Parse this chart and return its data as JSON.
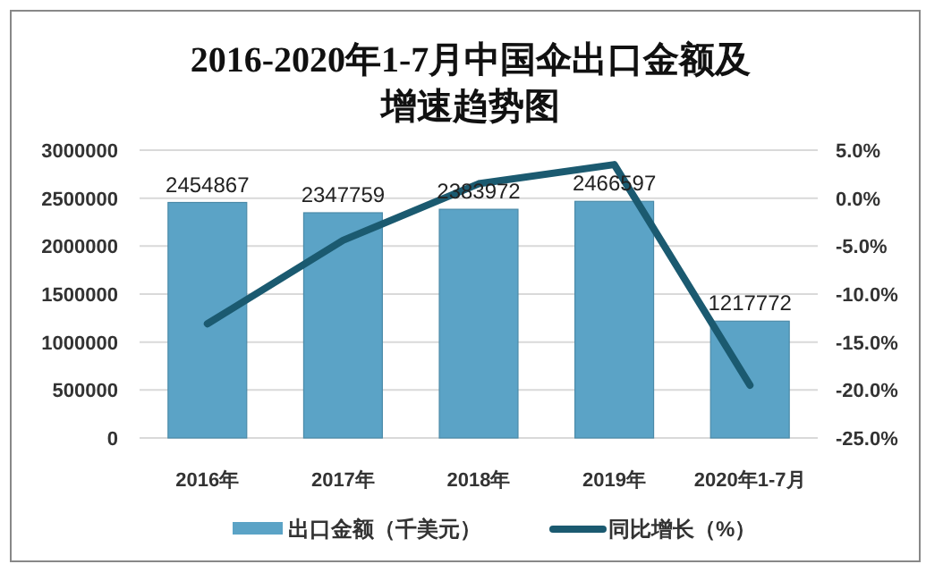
{
  "chart_data": {
    "type": "bar",
    "title": "2016-2020年1-7月中国伞出口金额及增速趋势图",
    "categories": [
      "2016年",
      "2017年",
      "2018年",
      "2019年",
      "2020年1-7月"
    ],
    "series": [
      {
        "name": "出口金额（千美元）",
        "color": "#5ba3c6",
        "values": [
          2454867,
          2347759,
          2383972,
          2466597,
          1217772
        ],
        "value_labels": [
          "2454867",
          "2347759",
          "2383972",
          "2466597",
          "1217772"
        ]
      },
      {
        "name": "同比增长（%）",
        "type": "line",
        "axis": "y2",
        "color": "#1b5a70",
        "values": [
          -13.1,
          -4.4,
          1.5,
          3.5,
          -19.5
        ]
      }
    ],
    "ylim": [
      0,
      3000000
    ],
    "yticks": [
      0,
      500000,
      1000000,
      1500000,
      2000000,
      2500000,
      3000000
    ],
    "y2lim": [
      -25,
      5
    ],
    "y2ticks": [
      {
        "value": -25,
        "label": "-25.0%"
      },
      {
        "value": -20,
        "label": "-20.0%"
      },
      {
        "value": -15,
        "label": "-15.0%"
      },
      {
        "value": -10,
        "label": "-10.0%"
      },
      {
        "value": -5,
        "label": "-5.0%"
      },
      {
        "value": 0,
        "label": "0.0%"
      },
      {
        "value": 5,
        "label": "5.0%"
      }
    ],
    "grid": "y",
    "legend": "bottom"
  }
}
